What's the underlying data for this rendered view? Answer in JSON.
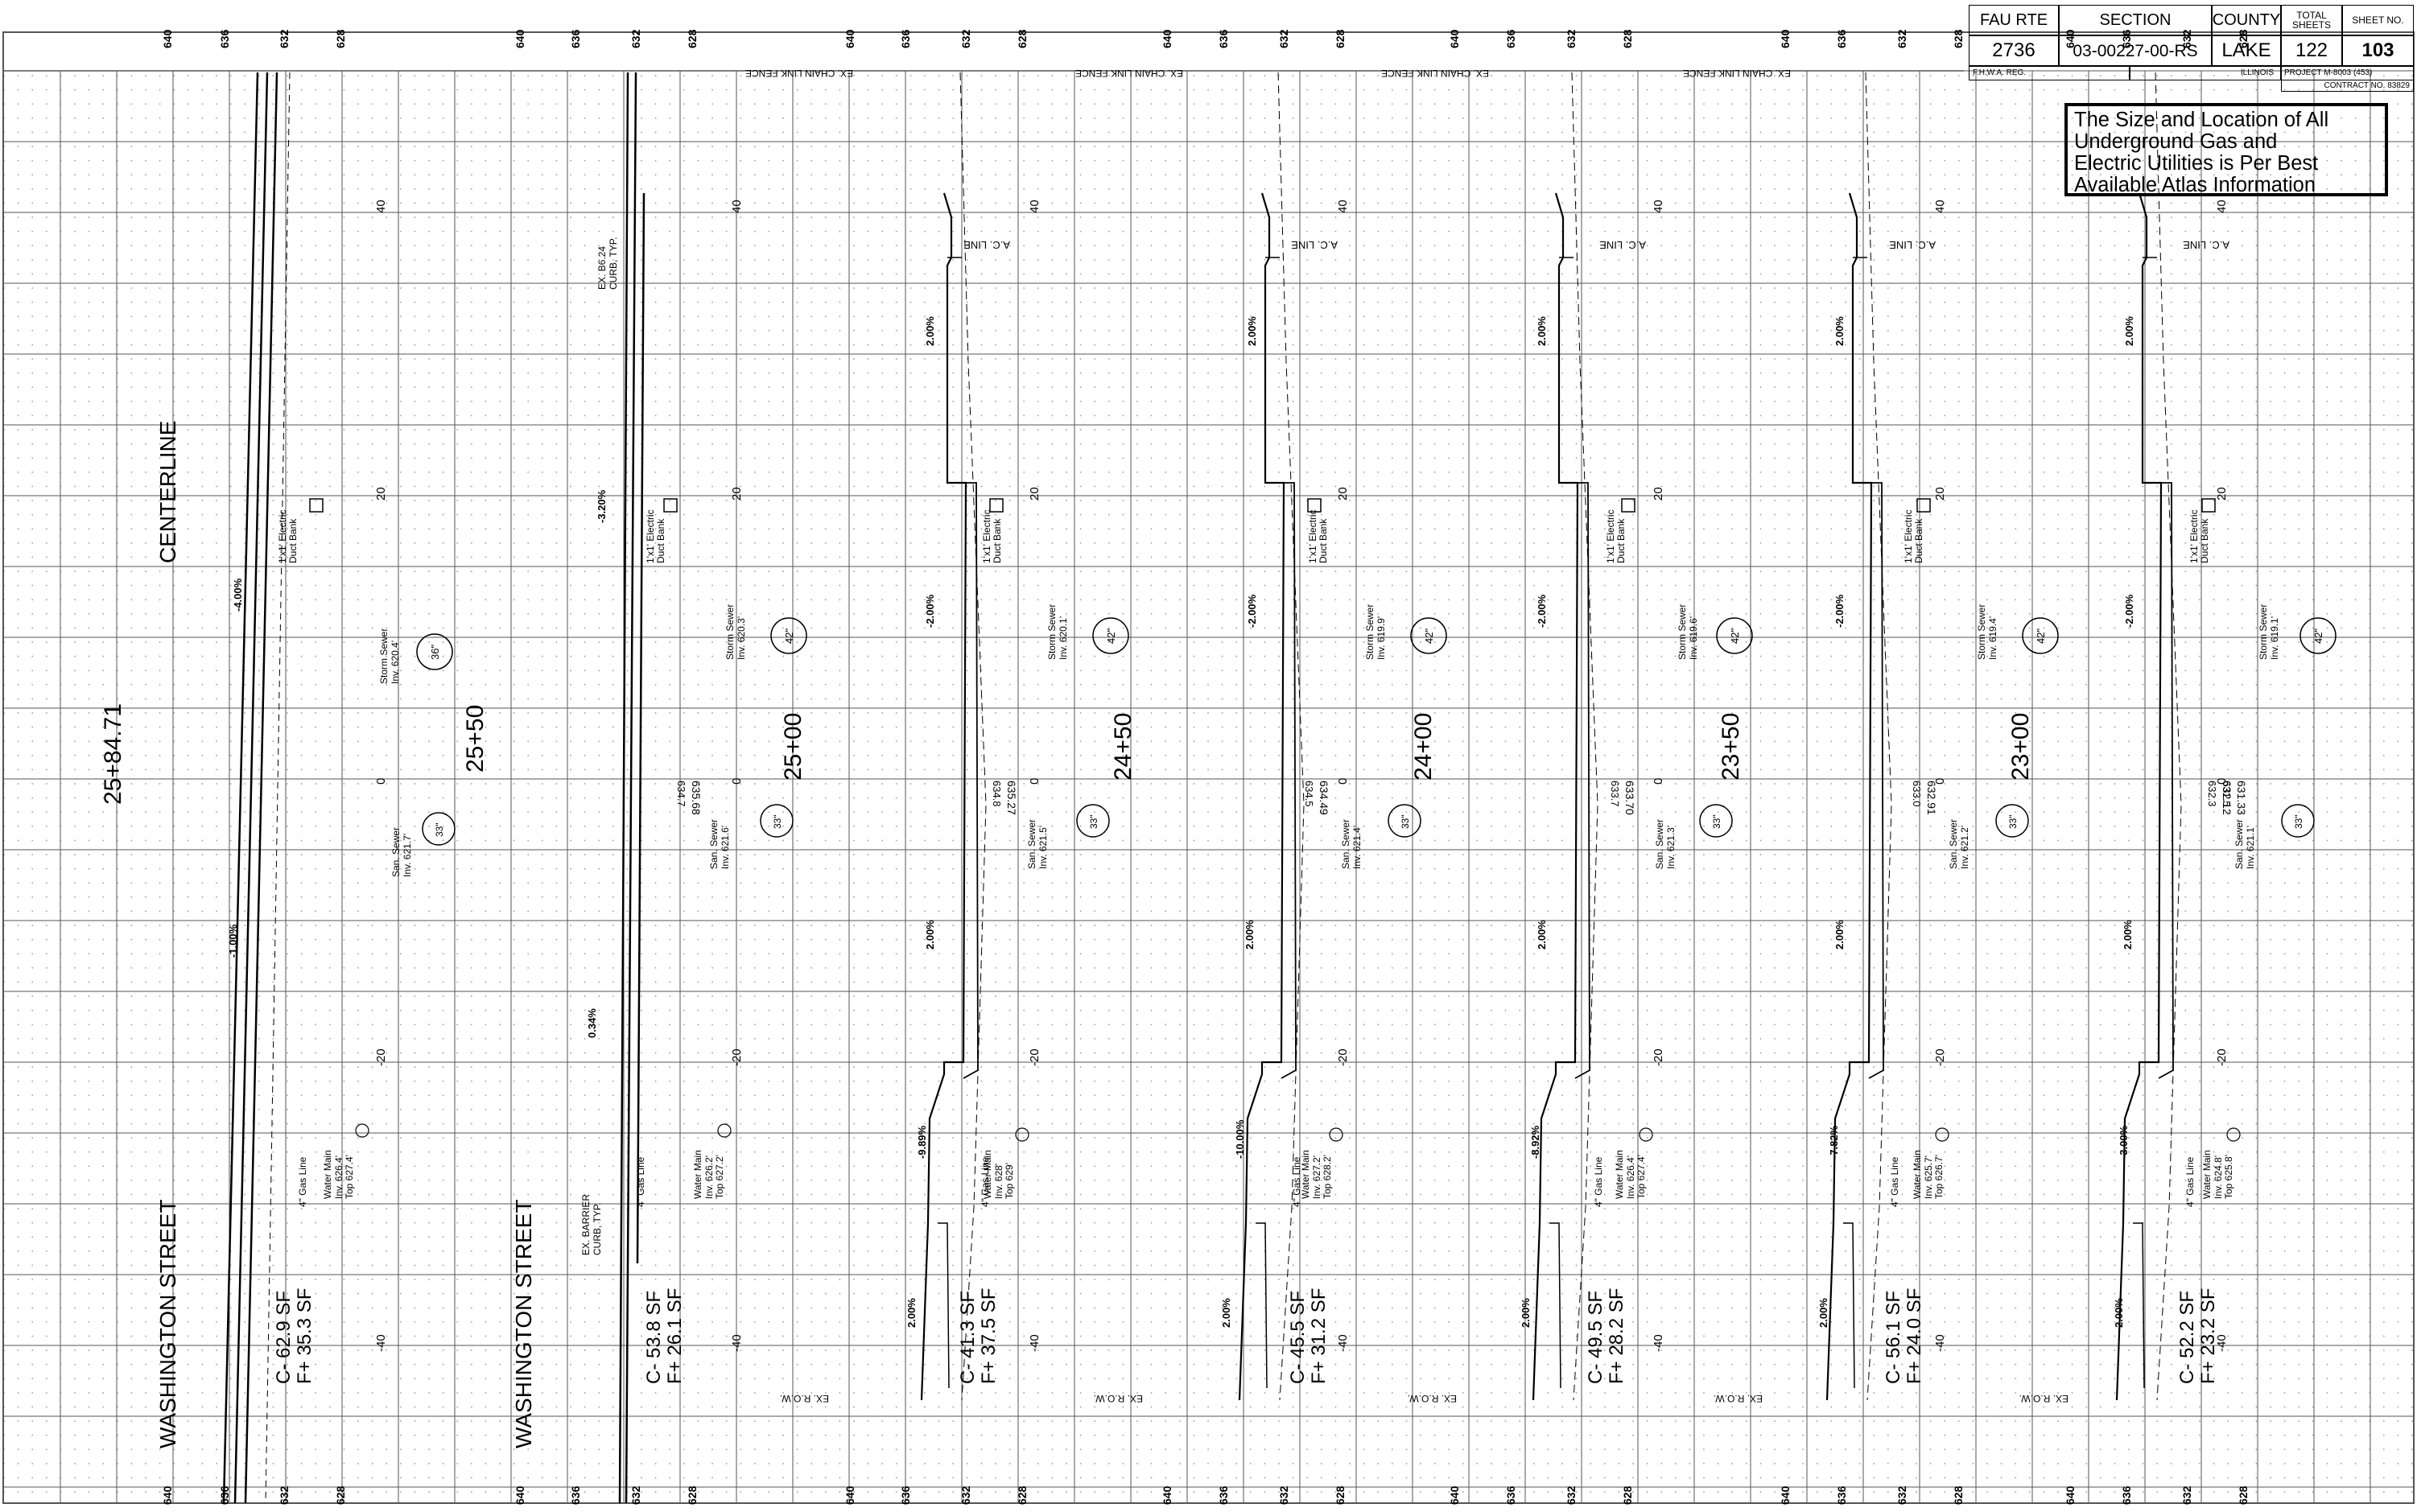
{
  "title_block": {
    "fau_rte_label": "FAU RTE",
    "fau_rte": "2736",
    "section_label": "SECTION",
    "section": "03-00227-00-RS",
    "county_label": "COUNTY",
    "county": "LAKE",
    "total_sheets_label": "TOTAL SHEETS",
    "total_sheets": "122",
    "sheet_no_label": "SHEET NO.",
    "sheet_no": "103",
    "fhwa_reg": "F.H.W.A. REG.",
    "state": "ILLINOIS",
    "project": "PROJECT M-8003 (453)",
    "contract": "CONTRACT NO. 83829"
  },
  "note": [
    "The Size and Location of All",
    "Underground Gas and",
    "Electric Utilities is Per Best",
    "Available Atlas Information"
  ],
  "elevation_ticks": [
    "640",
    "636",
    "632",
    "628"
  ],
  "offset_ticks": [
    "40",
    "20",
    "0",
    "-20",
    "-40"
  ],
  "labels": {
    "centerline": "CENTERLINE",
    "street": "WASHINGTON STREET",
    "ac_line": "A.C. LINE",
    "fence": "EX. CHAIN LINK FENCE",
    "row": "EX. R.O.W.",
    "gas": "4\" Gas Line",
    "duct_1": "1'x1' Electric",
    "duct_2": "Duct Bank",
    "barrier_1": "EX. B6.24",
    "barrier_2": "CURB, TYP.",
    "barrier2_1": "EX. BARRIER",
    "barrier2_2": "CURB, TYP.",
    "storm": "Storm Sewer",
    "san": "San. Sewer",
    "water": "Water Main"
  },
  "sections": [
    {
      "station": "25+84.71",
      "elev": "",
      "inv_label": "",
      "cut": "C- 62.9 SF",
      "fill": "F+ 35.3 SF",
      "storm_inv": "Inv. 620.4'",
      "storm_size": "36\"",
      "san_inv": "Inv. 621.7'",
      "san_size": "33\"",
      "wm_inv": "Inv. 626.4'",
      "wm_top": "Top 627.4'",
      "slopes": [
        "-4.00%",
        "-1.00%"
      ]
    },
    {
      "station": "25+50",
      "elev": "635.68",
      "inv_label": "634.7",
      "cut": "C- 53.8 SF",
      "fill": "F+ 26.1 SF",
      "storm_inv": "Inv. 620.3'",
      "storm_size": "42\"",
      "san_inv": "Inv. 621.6'",
      "san_size": "33\"",
      "wm_inv": "Inv. 626.2'",
      "wm_top": "Top 627.2'",
      "slopes": [
        "-3.20%",
        "0.34%"
      ]
    },
    {
      "station": "25+00",
      "elev": "635.27",
      "inv_label": "634.8",
      "cut": "C- 41.3 SF",
      "fill": "F+ 37.5 SF",
      "storm_inv": "Inv. 620.1'",
      "storm_size": "42\"",
      "san_inv": "Inv. 621.5'",
      "san_size": "33\"",
      "wm_inv": "Inv. 628'",
      "wm_top": "Top 629'",
      "slopes": [
        "2.00%",
        "-2.00%",
        "2.00%",
        "-9.89%",
        "2.00%"
      ]
    },
    {
      "station": "24+50",
      "elev": "634.49",
      "inv_label": "634.5",
      "cut": "C- 45.5 SF",
      "fill": "F+ 31.2 SF",
      "storm_inv": "Inv. 619.9'",
      "storm_size": "42\"",
      "san_inv": "Inv. 621.4'",
      "san_size": "33\"",
      "wm_inv": "Inv. 627.2'",
      "wm_top": "Top 628.2'",
      "slopes": [
        "2.00%",
        "-2.00%",
        "2.00%",
        "-10.00%",
        "2.00%"
      ]
    },
    {
      "station": "24+00",
      "elev": "633.70",
      "inv_label": "633.7",
      "cut": "C- 49.5 SF",
      "fill": "F+ 28.2 SF",
      "storm_inv": "Inv. 619.6'",
      "storm_size": "42\"",
      "san_inv": "Inv. 621.3'",
      "san_size": "33\"",
      "wm_inv": "Inv. 626.4'",
      "wm_top": "Top 627.4'",
      "slopes": [
        "2.00%",
        "-2.00%",
        "2.00%",
        "-8.92%",
        "2.00%"
      ]
    },
    {
      "station": "23+50",
      "elev": "632.91",
      "inv_label": "633.0",
      "cut": "C- 56.1 SF",
      "fill": "F+ 24.0 SF",
      "storm_inv": "Inv. 619.4'",
      "storm_size": "42\"",
      "san_inv": "Inv. 621.2'",
      "san_size": "33\"",
      "wm_inv": "Inv. 625.7'",
      "wm_top": "Top 626.7'",
      "slopes": [
        "2.00%",
        "-2.00%",
        "2.00%",
        "-7.82%",
        "2.00%"
      ]
    },
    {
      "station": "23+00",
      "elev": "632.12",
      "inv_label": "632.3",
      "cut": "C- 52.2 SF",
      "fill": "F+ 23.2 SF",
      "storm_inv": "Inv. 619.1'",
      "storm_size": "42\"",
      "san_inv": "Inv. 621.1'",
      "san_size": "33\"",
      "wm_inv": "Inv. 624.8'",
      "wm_top": "Top 625.8'",
      "slopes": [
        "2.00%",
        "-2.00%",
        "2.00%",
        "-3.00%",
        "2.00%"
      ]
    }
  ],
  "extra_elev": "631.33",
  "extra_inv": "631.5"
}
